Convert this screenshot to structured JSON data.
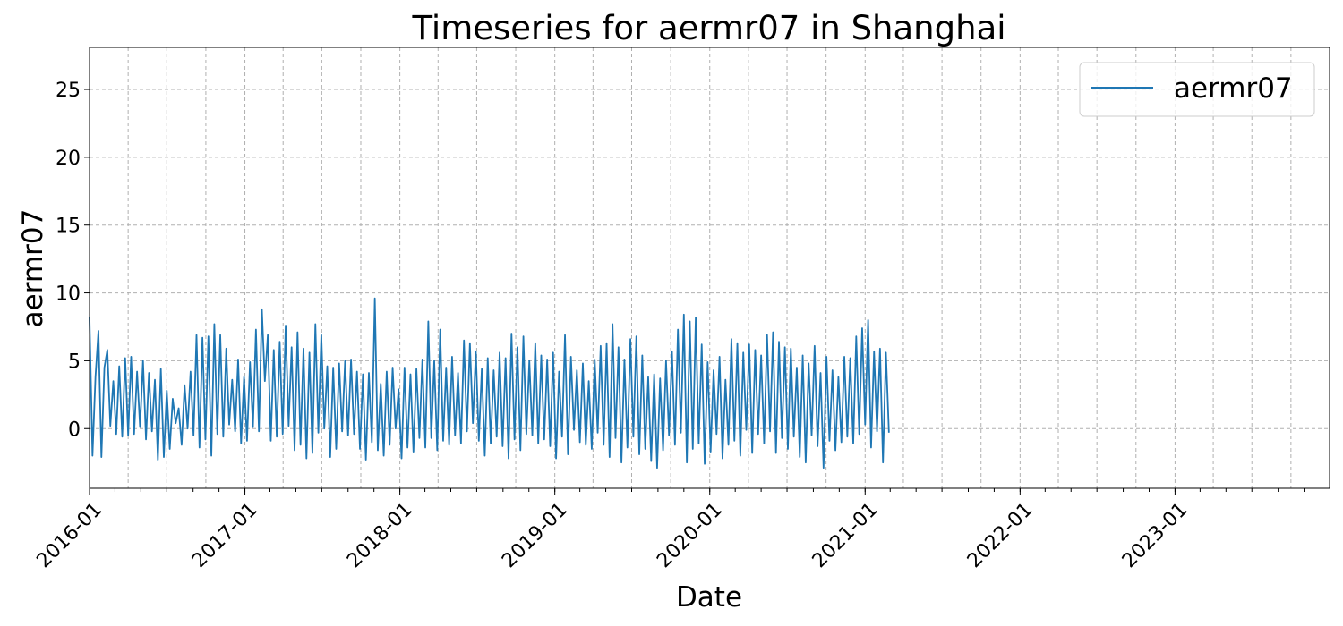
{
  "chart_data": {
    "type": "line",
    "title": "Timeseries for aermr07 in Shanghai",
    "xlabel": "Date",
    "ylabel": "aermr07",
    "xlim": [
      "2016-01-01",
      "2023-12-31"
    ],
    "ylim": [
      -4.4,
      28.1
    ],
    "yticks": [
      0,
      5,
      10,
      15,
      20,
      25
    ],
    "xticks_major": [
      "2016-01",
      "2017-01",
      "2018-01",
      "2019-01",
      "2020-01",
      "2021-01",
      "2022-01",
      "2023-01"
    ],
    "grid": true,
    "legend_position": "top-right",
    "series": [
      {
        "name": "aermr07",
        "color": "#1f77b4",
        "sampling": "weekly",
        "start_date": "2016-01-01",
        "values": [
          8.2,
          -2.0,
          3.8,
          7.2,
          -2.1,
          4.5,
          5.8,
          0.2,
          3.5,
          -0.4,
          4.6,
          -0.6,
          5.2,
          -0.5,
          5.3,
          -0.4,
          4.2,
          0.1,
          5.0,
          -0.8,
          4.1,
          -0.2,
          3.6,
          -2.3,
          4.4,
          -2.1,
          2.8,
          -1.5,
          2.2,
          0.4,
          1.5,
          -1.2,
          3.2,
          0.0,
          4.2,
          -0.5,
          6.9,
          -1.4,
          6.7,
          -0.8,
          6.8,
          -2.0,
          7.7,
          -0.4,
          6.9,
          -0.6,
          5.9,
          0.3,
          3.6,
          -0.2,
          5.1,
          -1.1,
          3.8,
          -0.9,
          4.9,
          0.1,
          7.3,
          -0.2,
          8.8,
          3.5,
          6.9,
          -0.9,
          5.8,
          -0.6,
          6.4,
          -0.4,
          7.6,
          0.2,
          6.0,
          -1.6,
          7.1,
          -1.2,
          5.9,
          -2.2,
          5.6,
          -1.8,
          7.7,
          -0.3,
          6.9,
          0.0,
          4.6,
          -2.1,
          4.5,
          -1.5,
          4.8,
          -0.2,
          5.0,
          -0.5,
          5.1,
          -0.4,
          4.2,
          -1.5,
          4.0,
          -2.3,
          4.1,
          -1.0,
          9.6,
          -1.6,
          3.3,
          -2.0,
          4.2,
          -1.2,
          4.5,
          0.0,
          2.9,
          -2.2,
          4.5,
          -1.4,
          4.0,
          -1.7,
          4.4,
          -0.7,
          5.1,
          -1.4,
          7.9,
          -0.7,
          5.0,
          -1.6,
          7.3,
          -0.9,
          4.5,
          -1.2,
          5.3,
          -0.5,
          4.1,
          -1.1,
          6.5,
          -0.2,
          6.3,
          0.4,
          5.7,
          -0.9,
          4.4,
          -2.0,
          5.2,
          -1.1,
          4.3,
          -0.6,
          5.6,
          -1.3,
          5.2,
          -2.2,
          7.0,
          -0.8,
          6.0,
          -1.6,
          6.8,
          -0.4,
          5.0,
          -0.5,
          6.3,
          -1.1,
          5.4,
          -0.8,
          5.1,
          -1.3,
          5.6,
          -2.2,
          4.2,
          -0.6,
          6.9,
          -1.9,
          5.3,
          -0.1,
          4.3,
          -1.0,
          4.8,
          -1.2,
          3.5,
          -1.5,
          5.1,
          -0.3,
          6.1,
          -1.2,
          6.3,
          -2.1,
          7.7,
          -0.7,
          6.0,
          -2.5,
          5.1,
          -1.4,
          6.6,
          -0.6,
          6.8,
          -1.9,
          5.4,
          -1.5,
          3.8,
          -2.4,
          4.0,
          -2.9,
          3.7,
          -1.6,
          5.0,
          -0.5,
          5.7,
          -1.2,
          7.3,
          -0.3,
          8.4,
          -2.5,
          7.9,
          -1.5,
          8.2,
          -1.1,
          6.2,
          -2.6,
          4.9,
          -1.7,
          4.3,
          -0.4,
          5.3,
          -2.2,
          3.6,
          -1.2,
          6.6,
          -0.9,
          6.3,
          -2.0,
          5.6,
          -0.1,
          6.2,
          -1.8,
          5.8,
          -0.4,
          5.4,
          -1.1,
          6.9,
          -0.2,
          7.1,
          -1.8,
          6.4,
          -0.7,
          6.0,
          -1.5,
          5.9,
          -0.6,
          4.5,
          -2.1,
          5.4,
          -2.5,
          4.8,
          -0.5,
          6.1,
          -1.3,
          4.1,
          -2.9,
          5.3,
          -0.9,
          4.3,
          -1.6,
          3.8,
          -1.0,
          5.3,
          -0.6,
          5.2,
          -1.1,
          6.8,
          -0.4,
          7.4,
          0.3,
          8.0,
          -1.4,
          5.7,
          -0.2,
          5.9,
          -2.5,
          5.6,
          -0.3
        ]
      }
    ]
  }
}
